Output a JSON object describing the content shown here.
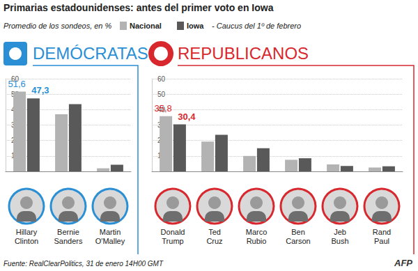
{
  "title": "Primarias estadounidenses: antes del primer voto en Iowa",
  "subtitle": "Promedio de los sondeos, en %",
  "legend_note": "- Caucus del 1º de febrero",
  "source": "Fuente: RealClearPolitics, 31 de enero 14H00 GMT",
  "credit": "AFP",
  "chart_data": [
    {
      "type": "bar",
      "title": "DEMÓCRATAS",
      "color": "#2a8fd4",
      "categories": [
        "Hillary Clinton",
        "Bernie Sanders",
        "Martin O'Malley"
      ],
      "series": [
        {
          "name": "Nacional",
          "color": "#b3b3b3",
          "values": [
            51.6,
            37.0,
            2.0
          ],
          "value_labels": [
            "51,6",
            null,
            null
          ]
        },
        {
          "name": "Iowa",
          "color": "#595959",
          "values": [
            47.3,
            43.5,
            4.3
          ],
          "value_labels": [
            "47,3",
            null,
            null
          ]
        }
      ],
      "ylim": [
        0,
        60
      ],
      "yticks": [
        10,
        20,
        30,
        40,
        50,
        60
      ],
      "grid": true
    },
    {
      "type": "bar",
      "title": "REPUBLICANOS",
      "color": "#d8282e",
      "categories": [
        "Donald Trump",
        "Ted Cruz",
        "Marco Rubio",
        "Ben Carson",
        "Jeb Bush",
        "Rand Paul"
      ],
      "series": [
        {
          "name": "Nacional",
          "color": "#b3b3b3",
          "values": [
            35.8,
            19.3,
            10.0,
            7.5,
            4.5,
            2.5
          ],
          "value_labels": [
            "35,8",
            null,
            null,
            null,
            null,
            null
          ]
        },
        {
          "name": "Iowa",
          "color": "#595959",
          "values": [
            30.4,
            23.7,
            15.0,
            8.5,
            3.5,
            3.3
          ],
          "value_labels": [
            "30,4",
            null,
            null,
            null,
            null,
            null
          ]
        }
      ],
      "ylim": [
        0,
        60
      ],
      "yticks": [
        10,
        20,
        30,
        40,
        50,
        60
      ],
      "grid": true
    }
  ]
}
